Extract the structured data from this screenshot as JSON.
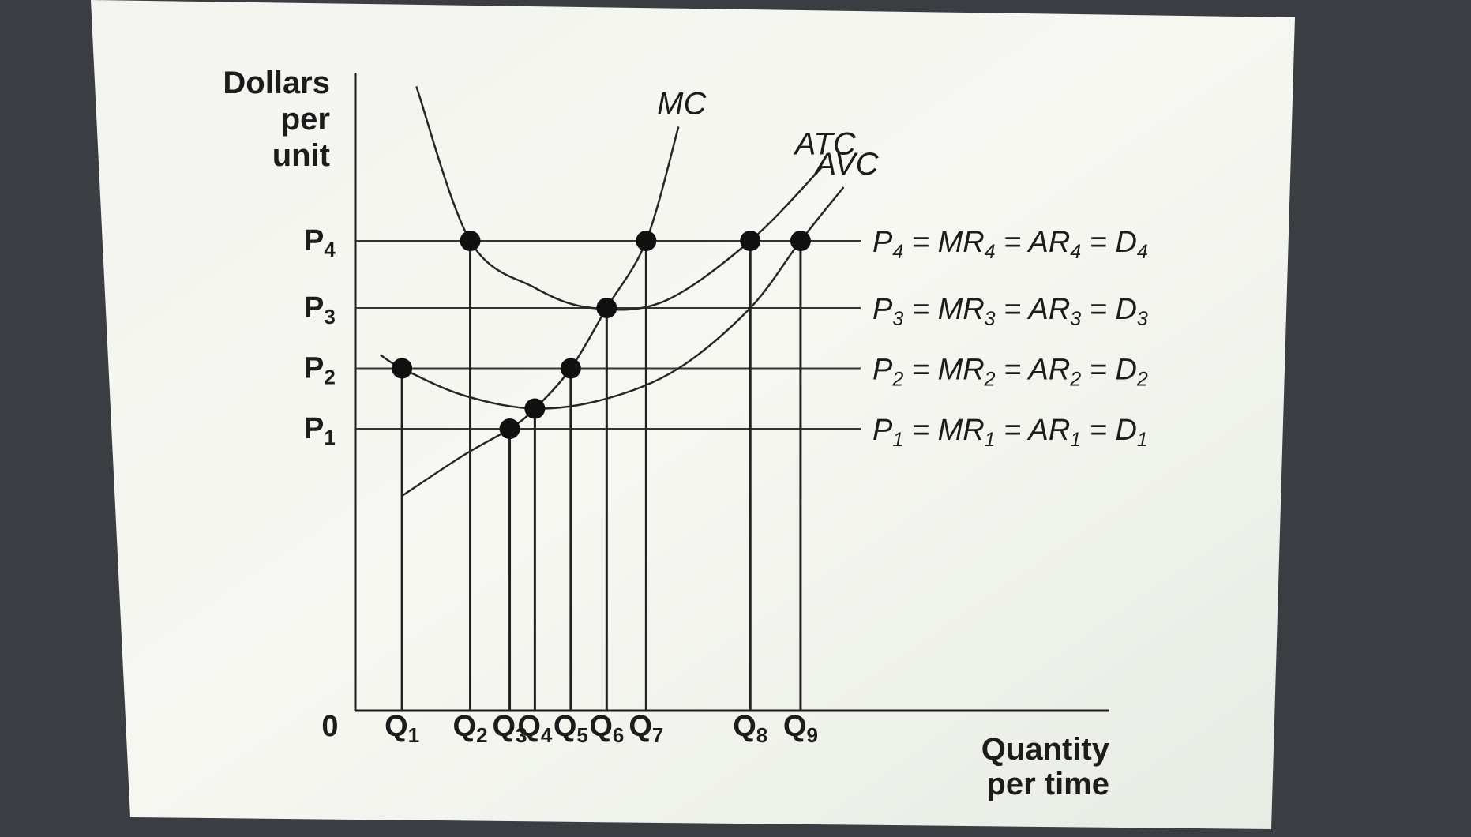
{
  "chart_data": {
    "type": "line",
    "title": "",
    "ylabel": [
      "Dollars",
      "per",
      "unit"
    ],
    "xlabel": [
      "Quantity",
      "per time"
    ],
    "origin_label": "0",
    "xlim": [
      0,
      10.5
    ],
    "ylim": [
      0,
      10
    ],
    "price_levels": [
      {
        "main": "P",
        "sub": "1",
        "value": 4.2
      },
      {
        "main": "P",
        "sub": "2",
        "value": 5.1
      },
      {
        "main": "P",
        "sub": "3",
        "value": 6.0
      },
      {
        "main": "P",
        "sub": "4",
        "value": 7.0
      }
    ],
    "quantities": [
      {
        "main": "Q",
        "sub": "1",
        "value": 0.65
      },
      {
        "main": "Q",
        "sub": "2",
        "value": 1.6
      },
      {
        "main": "Q",
        "sub": "3",
        "value": 2.15
      },
      {
        "main": "Q",
        "sub": "4",
        "value": 2.5
      },
      {
        "main": "Q",
        "sub": "5",
        "value": 3.0
      },
      {
        "main": "Q",
        "sub": "6",
        "value": 3.5
      },
      {
        "main": "Q",
        "sub": "7",
        "value": 4.05
      },
      {
        "main": "Q",
        "sub": "8",
        "value": 5.5
      },
      {
        "main": "Q",
        "sub": "9",
        "value": 6.2
      }
    ],
    "demand_lines": [
      {
        "level": "4",
        "parts": [
          "P",
          "4",
          " = MR",
          "4",
          " = AR",
          "4",
          " = D",
          "4"
        ]
      },
      {
        "level": "3",
        "parts": [
          "P",
          "3",
          " = MR",
          "3",
          " = AR",
          "3",
          " = D",
          "3"
        ]
      },
      {
        "level": "2",
        "parts": [
          "P",
          "2",
          " = MR",
          "2",
          " = AR",
          "2",
          " = D",
          "2"
        ]
      },
      {
        "level": "1",
        "parts": [
          "P",
          "1",
          " = MR",
          "1",
          " = AR",
          "1",
          " = D",
          "1"
        ]
      }
    ],
    "series": [
      {
        "name": "MC",
        "x": [
          0.65,
          1.5,
          2.15,
          2.5,
          3.0,
          3.5,
          4.05,
          4.5
        ],
        "y": [
          3.2,
          3.8,
          4.2,
          4.5,
          5.1,
          6.0,
          7.0,
          8.7
        ]
      },
      {
        "name": "ATC",
        "x": [
          0.85,
          1.6,
          2.5,
          3.3,
          4.3,
          5.5,
          6.5
        ],
        "y": [
          9.3,
          7.0,
          6.3,
          6.0,
          6.1,
          7.0,
          8.1
        ]
      },
      {
        "name": "AVC",
        "x": [
          0.35,
          0.65,
          1.5,
          2.5,
          3.5,
          4.5,
          5.5,
          6.2,
          6.8
        ],
        "y": [
          5.3,
          5.1,
          4.7,
          4.5,
          4.65,
          5.1,
          6.0,
          7.0,
          7.8
        ]
      }
    ],
    "points": [
      {
        "x": 0.65,
        "y": 5.1
      },
      {
        "x": 1.6,
        "y": 7.0
      },
      {
        "x": 2.15,
        "y": 4.2
      },
      {
        "x": 2.5,
        "y": 4.5
      },
      {
        "x": 3.0,
        "y": 5.1
      },
      {
        "x": 3.5,
        "y": 6.0
      },
      {
        "x": 4.05,
        "y": 7.0
      },
      {
        "x": 5.5,
        "y": 7.0
      },
      {
        "x": 6.2,
        "y": 7.0
      }
    ]
  }
}
